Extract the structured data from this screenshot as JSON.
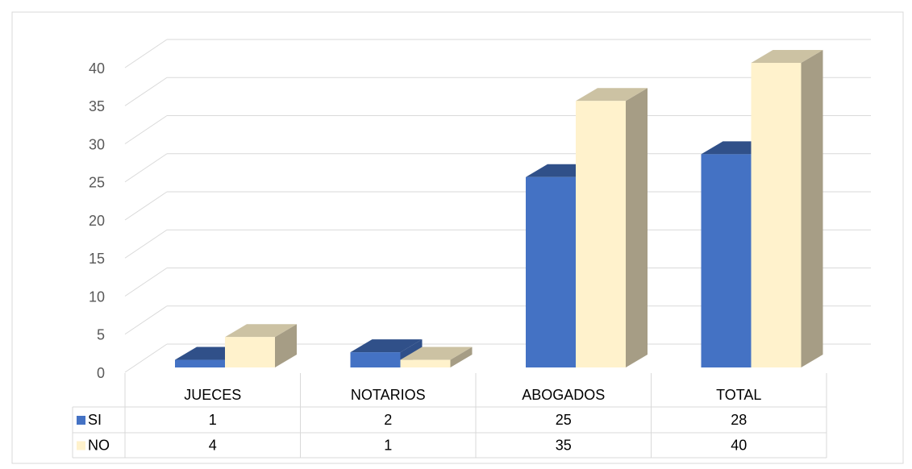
{
  "chart_data": {
    "type": "bar3d",
    "categories": [
      "JUECES",
      "NOTARIOS",
      "ABOGADOS",
      "TOTAL"
    ],
    "series": [
      {
        "name": "SI",
        "color": "#4472c4",
        "values": [
          1,
          2,
          25,
          28
        ]
      },
      {
        "name": "NO",
        "color": "#fff2cc",
        "values": [
          4,
          1,
          35,
          40
        ]
      }
    ],
    "ylim": [
      0,
      40
    ],
    "yticks": [
      0,
      5,
      10,
      15,
      20,
      25,
      30,
      35,
      40
    ],
    "grid": true,
    "legend": "table"
  }
}
